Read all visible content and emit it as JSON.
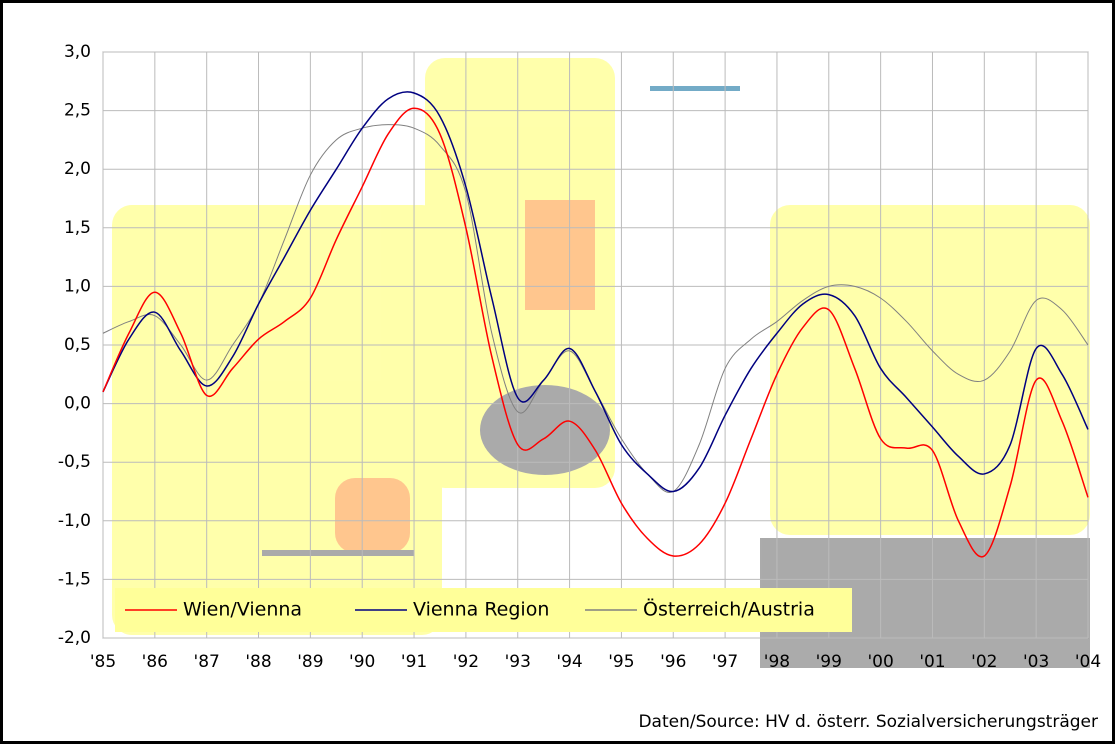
{
  "chart_data": {
    "type": "line",
    "categories": [
      "'85",
      null,
      "'86",
      null,
      "'87",
      null,
      "'88",
      null,
      "'89",
      null,
      "'90",
      null,
      "'91",
      null,
      "'92",
      null,
      "'93",
      null,
      "'94",
      null,
      "'95",
      null,
      "'96",
      null,
      "'97",
      null,
      "'98",
      null,
      "'99",
      null,
      "'00",
      null,
      "'01",
      null,
      "'02",
      null,
      "'03",
      null,
      "'04"
    ],
    "series": [
      {
        "name": "Wien/Vienna",
        "color": "#ff0000",
        "values": [
          0.1,
          0.6,
          0.95,
          0.6,
          0.07,
          0.3,
          0.55,
          0.7,
          0.9,
          1.4,
          1.85,
          2.3,
          2.52,
          2.3,
          1.5,
          0.4,
          -0.35,
          -0.3,
          -0.15,
          -0.4,
          -0.85,
          -1.15,
          -1.3,
          -1.2,
          -0.85,
          -0.3,
          0.25,
          0.65,
          0.8,
          0.3,
          -0.3,
          -0.38,
          -0.4,
          -1.0,
          -1.3,
          -0.7,
          0.2,
          -0.15,
          -0.8
        ]
      },
      {
        "name": "Vienna Region",
        "color": "#000080",
        "values": [
          0.1,
          0.55,
          0.78,
          0.45,
          0.15,
          0.4,
          0.85,
          1.25,
          1.65,
          2.0,
          2.35,
          2.6,
          2.65,
          2.45,
          1.85,
          0.9,
          0.05,
          0.2,
          0.47,
          0.1,
          -0.35,
          -0.6,
          -0.75,
          -0.55,
          -0.1,
          0.3,
          0.6,
          0.85,
          0.93,
          0.75,
          0.3,
          0.05,
          -0.2,
          -0.45,
          -0.6,
          -0.35,
          0.47,
          0.25,
          -0.22
        ]
      },
      {
        "name": "Österreich/Austria",
        "color": "#808080",
        "values": [
          0.6,
          0.7,
          0.75,
          0.5,
          0.2,
          0.5,
          0.85,
          1.4,
          1.95,
          2.25,
          2.35,
          2.38,
          2.35,
          2.2,
          1.8,
          0.6,
          -0.07,
          0.2,
          0.45,
          0.1,
          -0.3,
          -0.6,
          -0.75,
          -0.35,
          0.3,
          0.55,
          0.7,
          0.88,
          1.0,
          1.0,
          0.9,
          0.7,
          0.45,
          0.25,
          0.2,
          0.45,
          0.88,
          0.8,
          0.5
        ]
      }
    ],
    "ylim": [
      -2,
      3
    ],
    "yticks": [
      {
        "value": -2,
        "label": "-2,0"
      },
      {
        "value": -1.5,
        "label": "-1,5"
      },
      {
        "value": -1,
        "label": "-1,0"
      },
      {
        "value": -0.5,
        "label": "-0,5"
      },
      {
        "value": 0,
        "label": "0,0"
      },
      {
        "value": 0.5,
        "label": "0,5"
      },
      {
        "value": 1,
        "label": "1,0"
      },
      {
        "value": 1.5,
        "label": "1,5"
      },
      {
        "value": 2,
        "label": "2,0"
      },
      {
        "value": 2.5,
        "label": "2,5"
      },
      {
        "value": 3,
        "label": "3,0"
      }
    ],
    "grid": true,
    "legend": "bottom-left",
    "source": "Daten/Source: HV d. österr. Sozialversicherungsträger"
  }
}
